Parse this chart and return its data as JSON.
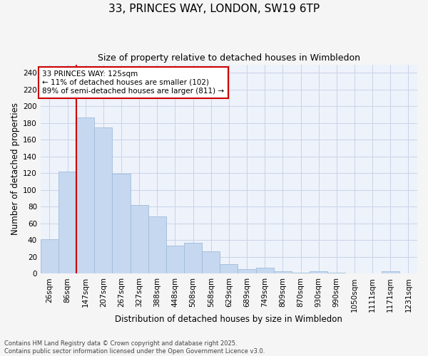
{
  "title": "33, PRINCES WAY, LONDON, SW19 6TP",
  "subtitle": "Size of property relative to detached houses in Wimbledon",
  "xlabel": "Distribution of detached houses by size in Wimbledon",
  "ylabel": "Number of detached properties",
  "categories": [
    "26sqm",
    "86sqm",
    "147sqm",
    "207sqm",
    "267sqm",
    "327sqm",
    "388sqm",
    "448sqm",
    "508sqm",
    "568sqm",
    "629sqm",
    "689sqm",
    "749sqm",
    "809sqm",
    "870sqm",
    "930sqm",
    "990sqm",
    "1050sqm",
    "1111sqm",
    "1171sqm",
    "1231sqm"
  ],
  "values": [
    41,
    122,
    187,
    175,
    119,
    82,
    68,
    33,
    37,
    27,
    11,
    5,
    7,
    3,
    1,
    3,
    1,
    0,
    0,
    3,
    0
  ],
  "bar_color": "#c5d8f0",
  "bar_edge_color": "#a0bcd8",
  "ylim": [
    0,
    250
  ],
  "yticks": [
    0,
    20,
    40,
    60,
    80,
    100,
    120,
    140,
    160,
    180,
    200,
    220,
    240
  ],
  "vline_index": 2,
  "vline_color": "#cc0000",
  "annotation_text": "33 PRINCES WAY: 125sqm\n← 11% of detached houses are smaller (102)\n89% of semi-detached houses are larger (811) →",
  "annotation_box_facecolor": "#ffffff",
  "annotation_box_edgecolor": "#cc0000",
  "footer_line1": "Contains HM Land Registry data © Crown copyright and database right 2025.",
  "footer_line2": "Contains public sector information licensed under the Open Government Licence v3.0.",
  "plot_bg_color": "#eef2fa",
  "fig_bg_color": "#f5f5f5",
  "grid_color": "#c8d4e8",
  "title_fontsize": 11,
  "subtitle_fontsize": 9,
  "tick_fontsize": 7.5,
  "axis_label_fontsize": 8.5
}
